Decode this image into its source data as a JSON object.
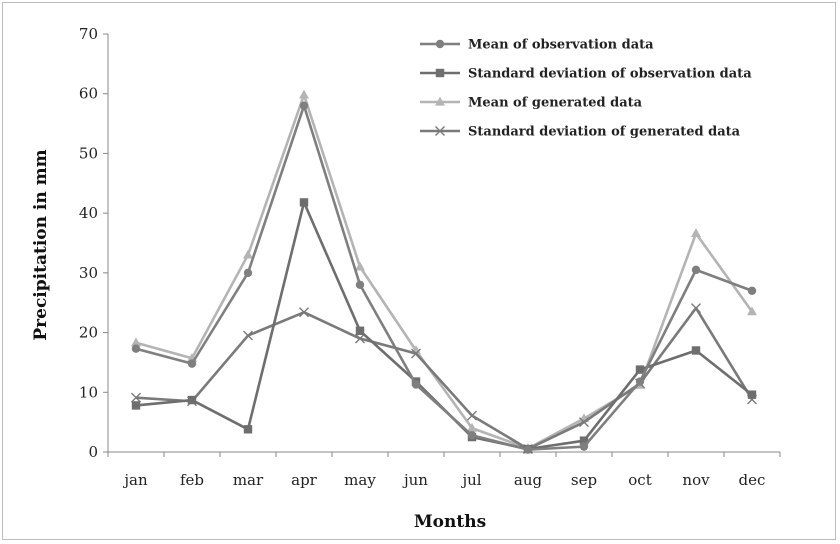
{
  "chart_data": {
    "type": "line",
    "xlabel": "Months",
    "ylabel": "Precipitation in mm",
    "ylim": [
      0,
      70
    ],
    "yticks": [
      0,
      10,
      20,
      30,
      40,
      50,
      60,
      70
    ],
    "grid": false,
    "legend_position": "top-right",
    "categories": [
      "jan",
      "feb",
      "mar",
      "apr",
      "may",
      "jun",
      "jul",
      "aug",
      "sep",
      "oct",
      "nov",
      "dec"
    ],
    "series": [
      {
        "name": "Mean of observation data",
        "marker": "circle",
        "color": "#7f7f7f",
        "values": [
          17.3,
          14.8,
          30.0,
          58.0,
          28.0,
          11.3,
          2.8,
          0.4,
          0.9,
          11.8,
          30.5,
          27.0
        ]
      },
      {
        "name": "Standard deviation of observation data",
        "marker": "square",
        "color": "#6e6e6e",
        "values": [
          7.8,
          8.7,
          3.8,
          41.8,
          20.3,
          11.8,
          2.5,
          0.5,
          1.9,
          13.8,
          17.0,
          9.6
        ]
      },
      {
        "name": "Mean of generated data",
        "marker": "triangle",
        "color": "#b4b4b4",
        "values": [
          18.3,
          15.7,
          33.0,
          59.8,
          31.0,
          17.0,
          4.0,
          0.6,
          5.6,
          11.2,
          36.6,
          23.5
        ]
      },
      {
        "name": "Standard deviation of generated data",
        "marker": "x",
        "color": "#7a7a7a",
        "values": [
          9.1,
          8.5,
          19.5,
          23.4,
          19.0,
          16.5,
          6.1,
          0.5,
          5.0,
          11.5,
          24.1,
          8.8
        ]
      }
    ]
  }
}
